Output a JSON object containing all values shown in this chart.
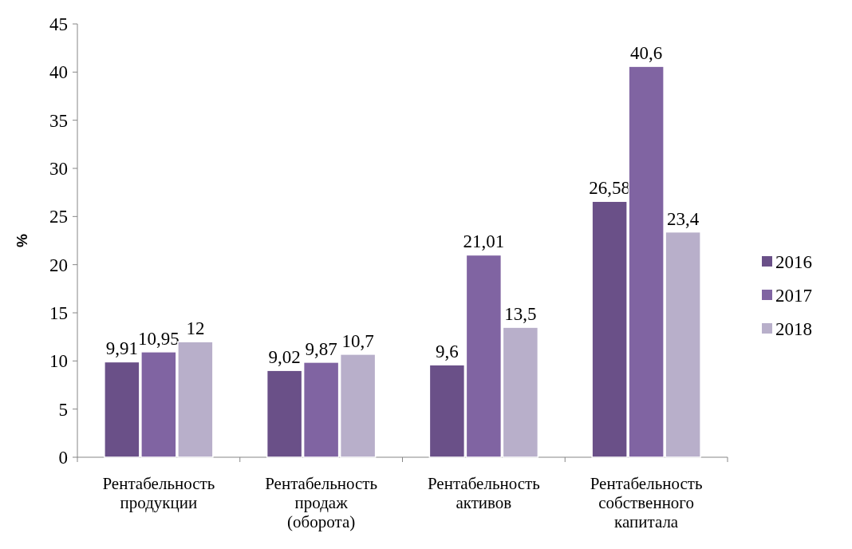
{
  "chart_data": {
    "type": "bar",
    "ylabel": "%",
    "categories": [
      "Рентабельность продукции",
      "Рентабельность продаж (оборота)",
      "Рентабельность активов",
      "Рентабельность собственного капитала"
    ],
    "series": [
      {
        "name": "2016",
        "color": "#6a5088",
        "values": [
          9.91,
          9.02,
          9.6,
          26.58
        ],
        "value_labels": [
          "9,91",
          "9,02",
          "9,6",
          "26,58"
        ]
      },
      {
        "name": "2017",
        "color": "#8064a2",
        "values": [
          10.95,
          9.87,
          21.01,
          40.6
        ],
        "value_labels": [
          "10,95",
          "9,87",
          "21,01",
          "40,6"
        ]
      },
      {
        "name": "2018",
        "color": "#b8afca",
        "values": [
          12,
          10.7,
          13.5,
          23.4
        ],
        "value_labels": [
          "12",
          "10,7",
          "13,5",
          "23,4"
        ]
      }
    ],
    "ylim": [
      0,
      45
    ],
    "yticks": [
      0,
      5,
      10,
      15,
      20,
      25,
      30,
      35,
      40,
      45
    ],
    "grid": false,
    "legend": "right"
  }
}
